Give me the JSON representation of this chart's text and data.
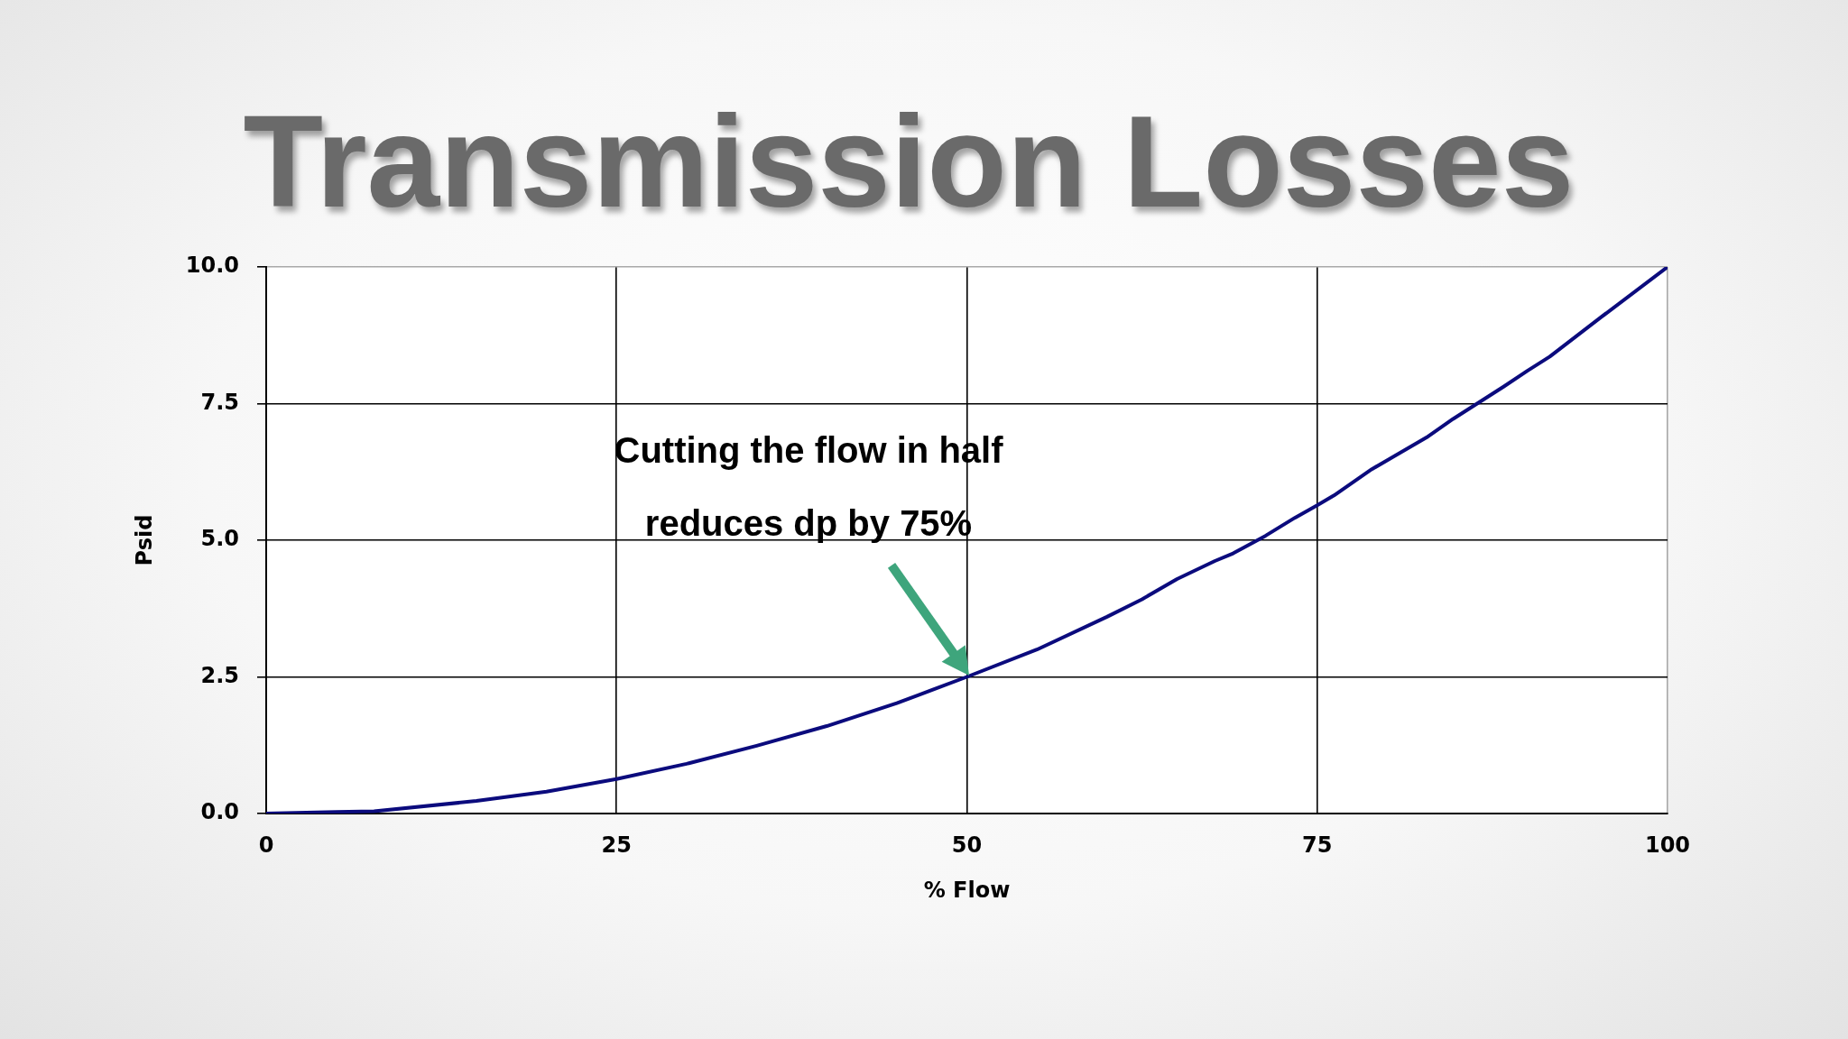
{
  "chart_data": {
    "type": "line",
    "title": "Transmission Losses",
    "xlabel": "% Flow",
    "ylabel": "Psid",
    "x": [
      0,
      5,
      7.7,
      15,
      20,
      25,
      30,
      35,
      40,
      45,
      50,
      55,
      60,
      62.5,
      65,
      67.7,
      69,
      71.3,
      73.4,
      75,
      76.2,
      78.9,
      82.8,
      84.7,
      88.3,
      90,
      91.6,
      95.3,
      100
    ],
    "series": [
      {
        "color": "#0b0b7d",
        "values": [
          0,
          0.03,
          0.04,
          0.23,
          0.4,
          0.63,
          0.91,
          1.24,
          1.6,
          2.02,
          2.5,
          3.0,
          3.6,
          3.92,
          4.29,
          4.62,
          4.76,
          5.08,
          5.41,
          5.64,
          5.82,
          6.3,
          6.88,
          7.22,
          7.81,
          8.1,
          8.36,
          9.09,
          10
        ]
      }
    ],
    "xlim": [
      0,
      100
    ],
    "xticks": [
      0,
      25,
      50,
      75,
      100
    ],
    "ylim": [
      0,
      10
    ],
    "yticks": [
      {
        "value": 0,
        "label": "0.0"
      },
      2.5,
      {
        "value": 5,
        "label": "5.0"
      },
      7.5,
      {
        "value": 10,
        "label": "10.0"
      }
    ],
    "grid": true,
    "marker": "none",
    "line_style": "solid",
    "annotations": [
      "Cutting the flow in half reduces dp by 75%"
    ]
  }
}
